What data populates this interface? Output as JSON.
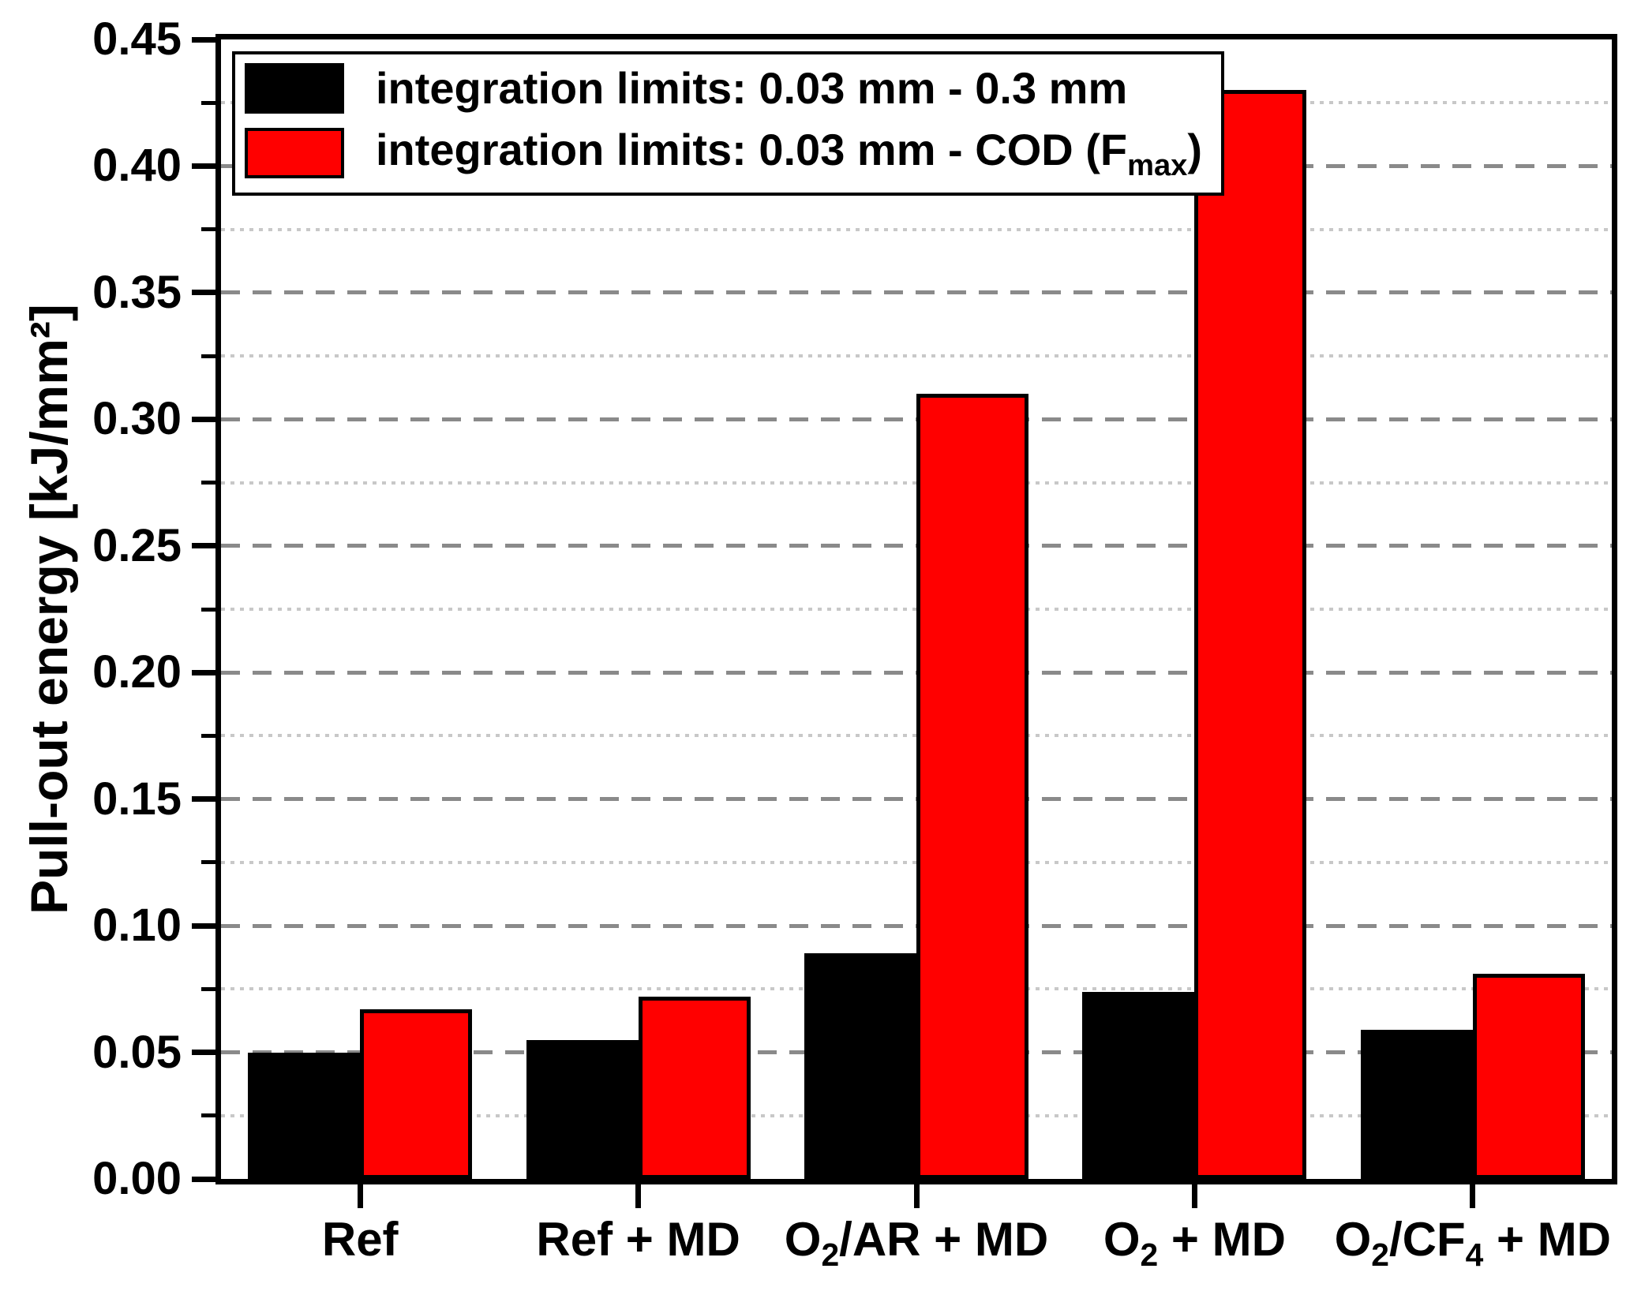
{
  "figure": {
    "background": "#ffffff"
  },
  "chart_data": {
    "type": "bar",
    "title": "",
    "xlabel": "",
    "ylabel": "Pull-out energy [kJ/mm²]",
    "ylim": [
      0,
      0.45
    ],
    "ytick_step": 0.05,
    "minor_ytick_step": 0.025,
    "yticks": [
      "0.00",
      "0.05",
      "0.10",
      "0.15",
      "0.20",
      "0.25",
      "0.30",
      "0.35",
      "0.40",
      "0.45"
    ],
    "grid": {
      "major_style": "dashed",
      "minor_style": "dotted",
      "orientation": "horizontal"
    },
    "categories": [
      "Ref",
      "Ref + MD",
      "O₂/AR + MD",
      "O₂ + MD",
      "O₂/CF₄ + MD"
    ],
    "categories_rich": [
      [
        [
          "t",
          "Ref"
        ]
      ],
      [
        [
          "t",
          "Ref + MD"
        ]
      ],
      [
        [
          "t",
          "O"
        ],
        [
          "s",
          "2"
        ],
        [
          "t",
          "/AR + MD"
        ]
      ],
      [
        [
          "t",
          "O"
        ],
        [
          "s",
          "2"
        ],
        [
          "t",
          " + MD"
        ]
      ],
      [
        [
          "t",
          "O"
        ],
        [
          "s",
          "2"
        ],
        [
          "t",
          "/CF"
        ],
        [
          "s",
          "4"
        ],
        [
          "t",
          " + MD"
        ]
      ]
    ],
    "series": [
      {
        "name": "integration limits: 0.03 mm - 0.3 mm",
        "color": "#000000",
        "values": [
          0.05,
          0.055,
          0.089,
          0.074,
          0.059
        ]
      },
      {
        "name": "integration limits: 0.03 mm - COD (Fmax)",
        "color": "#ff0000",
        "values": [
          0.067,
          0.072,
          0.31,
          0.43,
          0.081
        ]
      }
    ],
    "legend": {
      "position": "top-left",
      "entries": [
        {
          "color": "#000000",
          "parts": [
            [
              "t",
              "integration limits: 0.03 mm - 0.3 mm"
            ]
          ]
        },
        {
          "color": "#ff0000",
          "parts": [
            [
              "t",
              "integration limits: 0.03 mm - COD (F"
            ],
            [
              "s",
              "max"
            ],
            [
              "t",
              ")"
            ]
          ]
        }
      ]
    },
    "colors": {
      "bar_black": "#000000",
      "bar_red": "#ff0000",
      "bar_outline": "#000000",
      "grid_major": "#8a8a8a",
      "grid_minor": "#c8c8c8",
      "axis": "#000000"
    }
  }
}
